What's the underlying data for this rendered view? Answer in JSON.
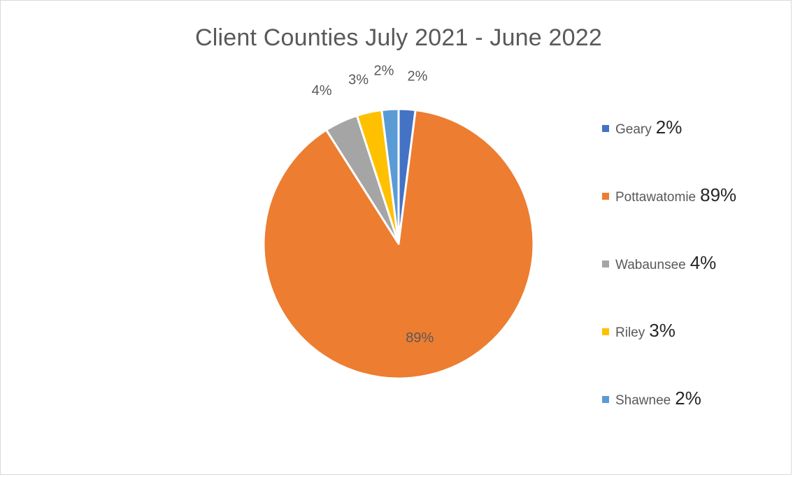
{
  "chart_data": {
    "type": "pie",
    "title": "Client Counties July 2021 - June 2022",
    "slices": [
      {
        "name": "Geary",
        "value": 2,
        "label": "2%",
        "color": "#4472C4"
      },
      {
        "name": "Pottawatomie",
        "value": 89,
        "label": "89%",
        "color": "#ED7D31"
      },
      {
        "name": "Wabaunsee",
        "value": 4,
        "label": "4%",
        "color": "#A5A5A5"
      },
      {
        "name": "Riley",
        "value": 3,
        "label": "3%",
        "color": "#FFC000"
      },
      {
        "name": "Shawnee",
        "value": 2,
        "label": "2%",
        "color": "#5B9BD5"
      }
    ],
    "legend_position": "right"
  }
}
